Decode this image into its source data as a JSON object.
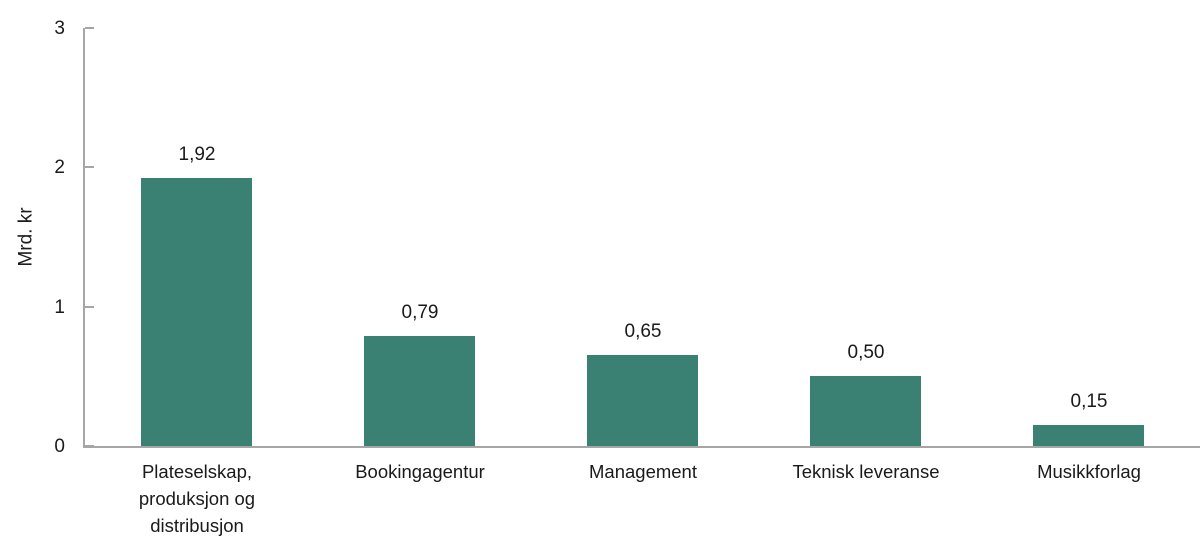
{
  "chart_data": {
    "type": "bar",
    "title": "",
    "xlabel": "",
    "ylabel": "Mrd. kr",
    "ylim": [
      0,
      3
    ],
    "yticks": [
      0,
      1,
      2,
      3
    ],
    "grid": false,
    "legend": "none",
    "categories": [
      "Plateselskap, produksjon og distribusjon",
      "Bookingagentur",
      "Management",
      "Teknisk leveranse",
      "Musikkforlag"
    ],
    "values": [
      1.92,
      0.79,
      0.65,
      0.5,
      0.15
    ],
    "value_labels": [
      "1,92",
      "0,79",
      "0,65",
      "0,50",
      "0,15"
    ],
    "colors": {
      "bar": "#3a8173",
      "axis": "#a6a6a6",
      "text": "#1a1a1a",
      "background": "#ffffff"
    }
  }
}
